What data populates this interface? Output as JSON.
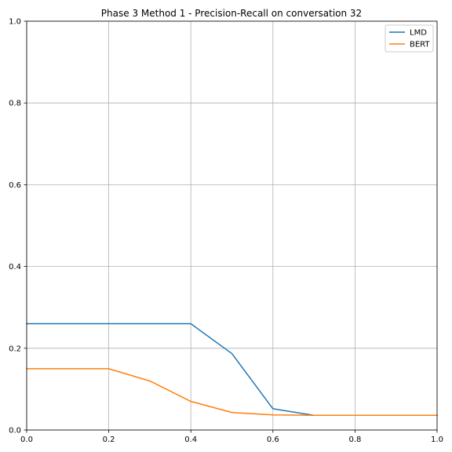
{
  "chart_data": {
    "type": "line",
    "title": "Phase 3 Method 1 - Precision-Recall on conversation 32",
    "xlabel": "",
    "ylabel": "",
    "xlim": [
      0,
      1
    ],
    "ylim": [
      0,
      1
    ],
    "xticks": [
      "0.0",
      "0.2",
      "0.4",
      "0.6",
      "0.8",
      "1.0"
    ],
    "yticks": [
      "0.0",
      "0.2",
      "0.4",
      "0.6",
      "0.8",
      "1.0"
    ],
    "grid": true,
    "legend_position": "top-right",
    "series": [
      {
        "name": "LMD",
        "color": "#1f77b4",
        "x": [
          0.0,
          0.1,
          0.2,
          0.3,
          0.4,
          0.5,
          0.6,
          0.7,
          0.8,
          0.9,
          1.0
        ],
        "y": [
          0.26,
          0.26,
          0.26,
          0.26,
          0.26,
          0.187,
          0.052,
          0.036,
          0.036,
          0.036,
          0.036
        ]
      },
      {
        "name": "BERT",
        "color": "#ff7f0e",
        "x": [
          0.0,
          0.1,
          0.2,
          0.3,
          0.4,
          0.5,
          0.6,
          0.7,
          0.8,
          0.9,
          1.0
        ],
        "y": [
          0.15,
          0.15,
          0.15,
          0.12,
          0.07,
          0.043,
          0.037,
          0.036,
          0.036,
          0.036,
          0.036
        ]
      }
    ]
  }
}
